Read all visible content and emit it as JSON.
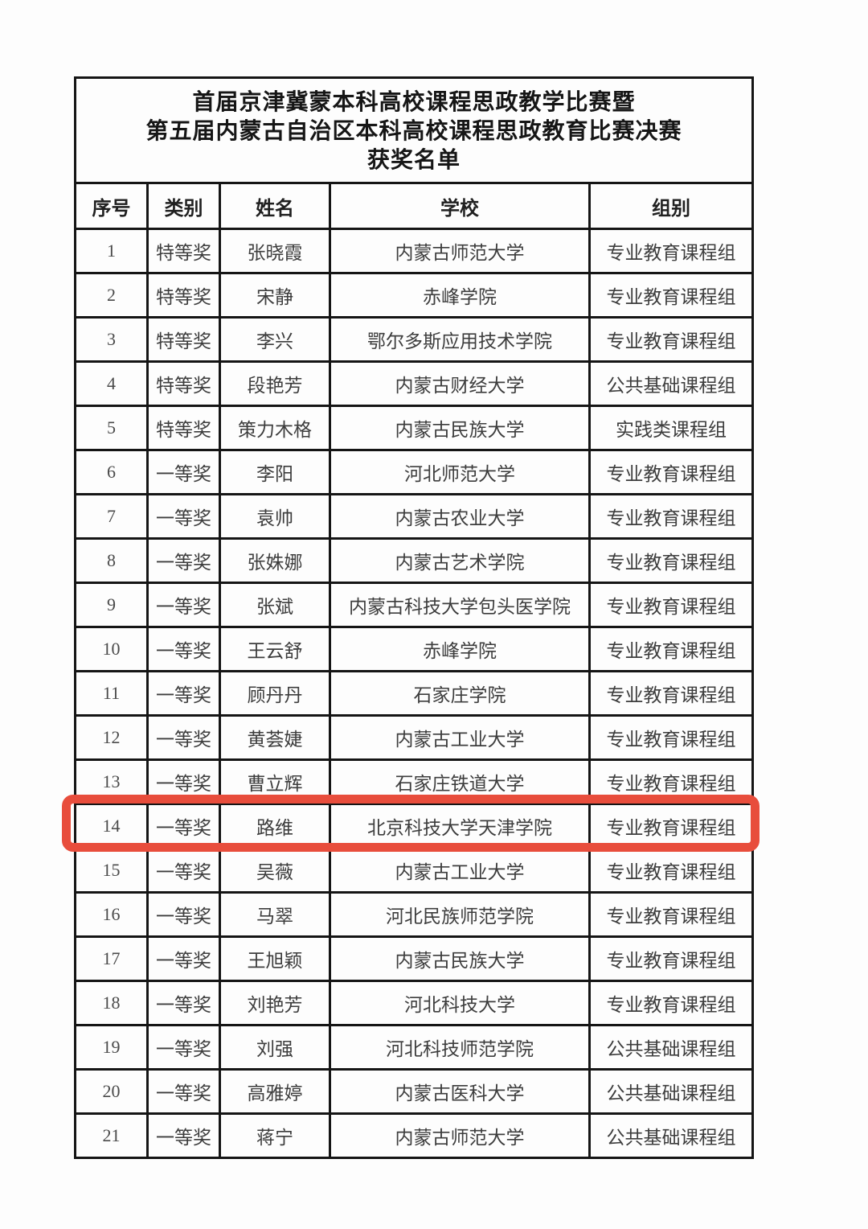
{
  "title": {
    "line1": "首届京津冀蒙本科高校课程思政教学比赛暨",
    "line2": "第五届内蒙古自治区本科高校课程思政教育比赛决赛",
    "line3": "获奖名单"
  },
  "table": {
    "headers": [
      "序号",
      "类别",
      "姓名",
      "学校",
      "组别"
    ],
    "column_keys": [
      "no",
      "category",
      "name",
      "school",
      "group"
    ],
    "rows": [
      [
        "1",
        "特等奖",
        "张晓霞",
        "内蒙古师范大学",
        "专业教育课程组"
      ],
      [
        "2",
        "特等奖",
        "宋静",
        "赤峰学院",
        "专业教育课程组"
      ],
      [
        "3",
        "特等奖",
        "李兴",
        "鄂尔多斯应用技术学院",
        "专业教育课程组"
      ],
      [
        "4",
        "特等奖",
        "段艳芳",
        "内蒙古财经大学",
        "公共基础课程组"
      ],
      [
        "5",
        "特等奖",
        "策力木格",
        "内蒙古民族大学",
        "实践类课程组"
      ],
      [
        "6",
        "一等奖",
        "李阳",
        "河北师范大学",
        "专业教育课程组"
      ],
      [
        "7",
        "一等奖",
        "袁帅",
        "内蒙古农业大学",
        "专业教育课程组"
      ],
      [
        "8",
        "一等奖",
        "张姝娜",
        "内蒙古艺术学院",
        "专业教育课程组"
      ],
      [
        "9",
        "一等奖",
        "张斌",
        "内蒙古科技大学包头医学院",
        "专业教育课程组"
      ],
      [
        "10",
        "一等奖",
        "王云舒",
        "赤峰学院",
        "专业教育课程组"
      ],
      [
        "11",
        "一等奖",
        "顾丹丹",
        "石家庄学院",
        "专业教育课程组"
      ],
      [
        "12",
        "一等奖",
        "黄荟婕",
        "内蒙古工业大学",
        "专业教育课程组"
      ],
      [
        "13",
        "一等奖",
        "曹立辉",
        "石家庄铁道大学",
        "专业教育课程组"
      ],
      [
        "14",
        "一等奖",
        "路维",
        "北京科技大学天津学院",
        "专业教育课程组"
      ],
      [
        "15",
        "一等奖",
        "吴薇",
        "内蒙古工业大学",
        "专业教育课程组"
      ],
      [
        "16",
        "一等奖",
        "马翠",
        "河北民族师范学院",
        "专业教育课程组"
      ],
      [
        "17",
        "一等奖",
        "王旭颖",
        "内蒙古民族大学",
        "专业教育课程组"
      ],
      [
        "18",
        "一等奖",
        "刘艳芳",
        "河北科技大学",
        "专业教育课程组"
      ],
      [
        "19",
        "一等奖",
        "刘强",
        "河北科技师范学院",
        "公共基础课程组"
      ],
      [
        "20",
        "一等奖",
        "高雅婷",
        "内蒙古医科大学",
        "公共基础课程组"
      ],
      [
        "21",
        "一等奖",
        "蒋宁",
        "内蒙古师范大学",
        "公共基础课程组"
      ]
    ],
    "highlight": {
      "row_number": "14",
      "color": "#e84d3c"
    }
  }
}
